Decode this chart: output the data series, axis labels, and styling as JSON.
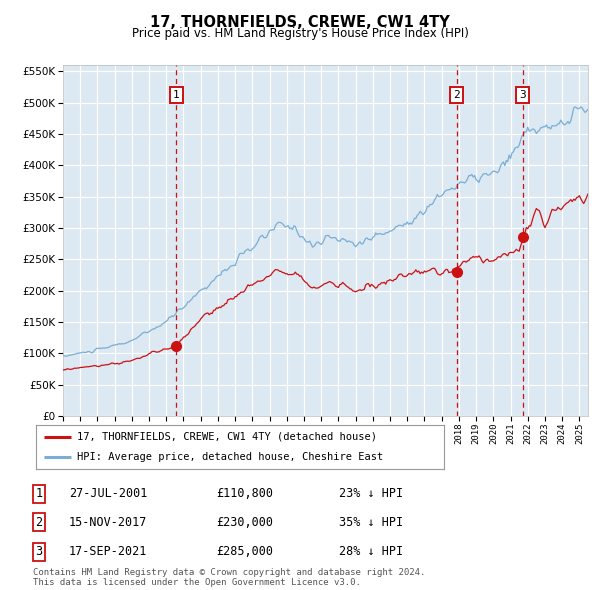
{
  "title": "17, THORNFIELDS, CREWE, CW1 4TY",
  "subtitle": "Price paid vs. HM Land Registry's House Price Index (HPI)",
  "ylim": [
    0,
    560000
  ],
  "yticks": [
    0,
    50000,
    100000,
    150000,
    200000,
    250000,
    300000,
    350000,
    400000,
    450000,
    500000,
    550000
  ],
  "hpi_color": "#7aaed4",
  "price_color": "#cc1111",
  "fig_bg": "#f4f4f4",
  "plot_bg": "#dce8f2",
  "grid_color": "#ffffff",
  "vline_color": "#cc1111",
  "sale1_year": 2001.57,
  "sale1_price": 110800,
  "sale2_year": 2017.87,
  "sale2_price": 230000,
  "sale3_year": 2021.71,
  "sale3_price": 285000,
  "legend_label_price": "17, THORNFIELDS, CREWE, CW1 4TY (detached house)",
  "legend_label_hpi": "HPI: Average price, detached house, Cheshire East",
  "table_entries": [
    {
      "num": "1",
      "date": "27-JUL-2001",
      "price": "£110,800",
      "pct": "23% ↓ HPI"
    },
    {
      "num": "2",
      "date": "15-NOV-2017",
      "price": "£230,000",
      "pct": "35% ↓ HPI"
    },
    {
      "num": "3",
      "date": "17-SEP-2021",
      "price": "£285,000",
      "pct": "28% ↓ HPI"
    }
  ],
  "footnote": "Contains HM Land Registry data © Crown copyright and database right 2024.\nThis data is licensed under the Open Government Licence v3.0."
}
